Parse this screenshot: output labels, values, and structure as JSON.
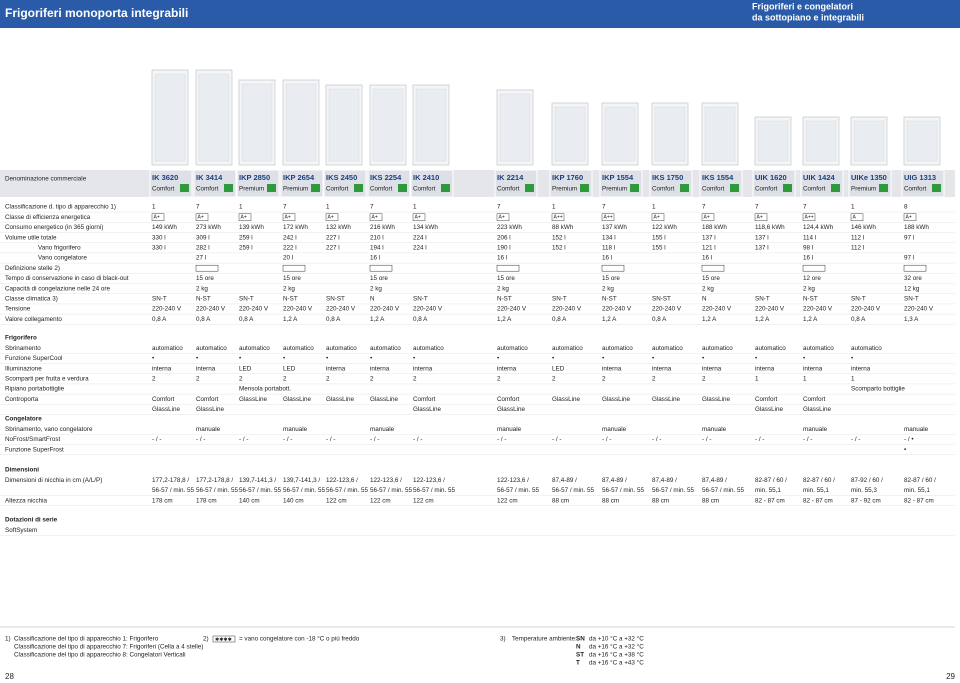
{
  "header": {
    "title": "Frigoriferi monoporta integrabili",
    "right_title": [
      "Frigoriferi e congelatori",
      "da sottopiano e integrabili"
    ]
  },
  "table": {
    "header_label": "Denominazione commerciale",
    "models": [
      {
        "name": "IK 3620",
        "line": "Comfort"
      },
      {
        "name": "IK 3414",
        "line": "Comfort"
      },
      {
        "name": "IKP 2850",
        "line": "Premium"
      },
      {
        "name": "IKP 2654",
        "line": "Premium"
      },
      {
        "name": "IKS 2450",
        "line": "Comfort"
      },
      {
        "name": "IKS 2254",
        "line": "Comfort"
      },
      {
        "name": "IK 2410",
        "line": "Comfort"
      },
      {
        "name": "IK 2214",
        "line": "Comfort"
      },
      {
        "name": "IKP 1760",
        "line": "Premium"
      },
      {
        "name": "IKP 1554",
        "line": "Premium"
      },
      {
        "name": "IKS 1750",
        "line": "Comfort"
      },
      {
        "name": "IKS 1554",
        "line": "Comfort"
      },
      {
        "name": "UIK 1620",
        "line": "Comfort"
      },
      {
        "name": "UIK 1424",
        "line": "Comfort"
      },
      {
        "name": "UIKe 1350",
        "line": "Premium"
      },
      {
        "name": "UIG 1313",
        "line": "Comfort"
      }
    ],
    "sections": [
      {
        "rows": [
          {
            "label": "Classificazione d. tipo di apparecchio  1)",
            "cells": [
              "1",
              "7",
              "1",
              "7",
              "1",
              "7",
              "1",
              "7",
              "1",
              "7",
              "1",
              "7",
              "7",
              "7",
              "1",
              "8"
            ]
          },
          {
            "label": "Classe di efficienza energetica",
            "cells": [
              "A+",
              "A+",
              "A+",
              "A+",
              "A+",
              "A+",
              "A+",
              "A+",
              "A++",
              "A++",
              "A+",
              "A+",
              "A+",
              "A++",
              "A",
              "A+"
            ]
          },
          {
            "label": "Consumo energetico (in 365 giorni)",
            "cells": [
              "149 kWh",
              "273 kWh",
              "139 kWh",
              "172 kWh",
              "132 kWh",
              "216 kWh",
              "134 kWh",
              "223 kWh",
              "88 kWh",
              "137 kWh",
              "122 kWh",
              "188 kWh",
              "118,6 kWh",
              "124,4 kWh",
              "146 kWh",
              "188 kWh"
            ]
          },
          {
            "label": "Volume utile  totale",
            "cells": [
              "330 l",
              "309 l",
              "259 l",
              "242 l",
              "227 l",
              "210 l",
              "224 l",
              "206 l",
              "152 l",
              "134 l",
              "155 l",
              "137 l",
              "137 l",
              "114 l",
              "112 l",
              "97 l"
            ]
          },
          {
            "label": "Vano frigorifero",
            "cells": [
              "330 l",
              "282 l",
              "259 l",
              "222 l",
              "227 l",
              "194 l",
              "224 l",
              "190 l",
              "152 l",
              "118 l",
              "155 l",
              "121 l",
              "137 l",
              "98 l",
              "112 l",
              null
            ]
          },
          {
            "label": "Vano congelatore",
            "cells": [
              null,
              "27 l",
              null,
              "20 l",
              null,
              "16 l",
              null,
              "16 l",
              null,
              "16 l",
              null,
              "16 l",
              null,
              "16 l",
              null,
              "97 l"
            ]
          },
          {
            "label": "Definizione stelle  2)"
          },
          {
            "label": "Tempo di conservazione in caso di black-out",
            "cells": [
              null,
              "15 ore",
              null,
              "15 ore",
              null,
              "15 ore",
              null,
              "15 ore",
              null,
              "15 ore",
              null,
              "15 ore",
              null,
              "12 ore",
              null,
              "32 ore"
            ]
          },
          {
            "label": "Capacità di congelazione nelle 24 ore",
            "cells": [
              null,
              "2 kg",
              null,
              "2 kg",
              null,
              "2 kg",
              null,
              "2 kg",
              null,
              "2 kg",
              null,
              "2 kg",
              null,
              "2 kg",
              null,
              "12 kg"
            ]
          },
          {
            "label": "Classe climatica  3)",
            "cells": [
              "SN-T",
              "N-ST",
              "SN-T",
              "N-ST",
              "SN-ST",
              "N",
              "SN-T",
              "N-ST",
              "SN-T",
              "N-ST",
              "SN-ST",
              "N",
              "SN-T",
              "N-ST",
              "SN-T",
              "SN-T"
            ]
          },
          {
            "label": "Tensione",
            "cells": [
              "220-240 V",
              "220-240 V",
              "220-240 V",
              "220-240 V",
              "220-240 V",
              "220-240 V",
              "220-240 V",
              "220-240 V",
              "220-240 V",
              "220-240 V",
              "220-240 V",
              "220-240 V",
              "220-240 V",
              "220-240 V",
              "220-240 V",
              "220-240 V"
            ]
          },
          {
            "label": "Valore collegamento",
            "cells": [
              "0,8 A",
              "0,8 A",
              "0,8 A",
              "1,2 A",
              "0,8 A",
              "1,2 A",
              "0,8 A",
              "1,2 A",
              "0,8 A",
              "1,2 A",
              "0,8 A",
              "1,2 A",
              "1,2 A",
              "1,2 A",
              "0,8 A",
              "1,3 A"
            ]
          }
        ]
      },
      {
        "title": "Frigorifero",
        "rows": [
          {
            "label": "Sbrinamento",
            "cells": [
              "automatico",
              "automatico",
              "automatico",
              "automatico",
              "automatico",
              "automatico",
              "automatico",
              "automatico",
              "automatico",
              "automatico",
              "automatico",
              "automatico",
              "automatico",
              "automatico",
              "automatico",
              null
            ]
          },
          {
            "label": "Funzione SuperCool",
            "cells": [
              "•",
              "•",
              "•",
              "•",
              "•",
              "•",
              "•",
              "•",
              "•",
              "•",
              "•",
              "•",
              "•",
              "•",
              "•",
              null
            ]
          },
          {
            "label": "Illuminazione",
            "cells": [
              "interna",
              "interna",
              "LED",
              "LED",
              "interna",
              "interna",
              "interna",
              "interna",
              "LED",
              "interna",
              "interna",
              "interna",
              "interna",
              "interna",
              "interna",
              null
            ]
          },
          {
            "label": "Scomparti per frutta e verdura",
            "cells": [
              "2",
              "2",
              "2",
              "2",
              "2",
              "2",
              "2",
              "2",
              "2",
              "2",
              "2",
              "2",
              "1",
              "1",
              "1",
              null
            ]
          },
          {
            "label": "Ripiano portabottiglie",
            "cells": [
              null,
              null,
              "Mensola portabott.",
              null,
              null,
              null,
              null,
              null,
              null,
              null,
              null,
              null,
              null,
              null,
              "Scomparto bottiglie",
              null
            ]
          },
          {
            "label": "Controporta",
            "cells": [
              "Comfort",
              "Comfort",
              "GlassLine",
              "GlassLine",
              "GlassLine",
              "GlassLine",
              "Comfort",
              "Comfort",
              "GlassLine",
              "GlassLine",
              "GlassLine",
              "GlassLine",
              "Comfort",
              "Comfort",
              null,
              null
            ]
          },
          {
            "cells": [
              "GlassLine",
              "GlassLine",
              null,
              null,
              null,
              null,
              "GlassLine",
              "GlassLine",
              null,
              null,
              null,
              null,
              "GlassLine",
              "GlassLine",
              null,
              null
            ]
          }
        ]
      },
      {
        "title": "Congelatore",
        "rows": [
          {
            "label": "Sbrinamento, vano congelatore",
            "cells": [
              null,
              "manuale",
              null,
              "manuale",
              null,
              "manuale",
              null,
              "manuale",
              null,
              "manuale",
              null,
              "manuale",
              null,
              "manuale",
              null,
              "manuale"
            ]
          },
          {
            "label": "NoFrost/SmartFrost",
            "cells": [
              "- / -",
              "- / -",
              "- / -",
              "- / -",
              "- / -",
              "- / -",
              "- / -",
              "- / -",
              "- / -",
              "- / -",
              "- / -",
              "- / -",
              "- / -",
              "- / -",
              "- / -",
              "- / •"
            ]
          },
          {
            "label": "Funzione SuperFrost",
            "cells": [
              null,
              null,
              null,
              null,
              null,
              null,
              null,
              null,
              null,
              null,
              null,
              null,
              null,
              null,
              null,
              "•"
            ]
          }
        ]
      },
      {
        "title": "Dimensioni",
        "rows": [
          {
            "label": "Dimensioni di nicchia in cm (A/L/P)",
            "cells": [
              [
                "177,2-178,8 /",
                "56-57 / min. 55"
              ],
              [
                "177,2-178,8 /",
                "56-57 / min. 55"
              ],
              [
                "139,7-141,3 /",
                "56-57 / min. 55"
              ],
              [
                "139,7-141,3 /",
                "56-57 / min. 55"
              ],
              [
                "122-123,6 /",
                "56-57 / min. 55"
              ],
              [
                "122-123,6 /",
                "56-57 / min. 55"
              ],
              [
                "122-123,6 /",
                "56-57 / min. 55"
              ],
              [
                "122-123,6 /",
                "56-57 / min. 55"
              ],
              [
                "87,4-89 /",
                "56-57 / min. 55"
              ],
              [
                "87,4-89 /",
                "56-57 / min. 55"
              ],
              [
                "87,4-89 /",
                "56-57 / min. 55"
              ],
              [
                "87,4-89 /",
                "56-57 / min. 55"
              ],
              [
                "82-87 / 60 /",
                "min. 55,1"
              ],
              [
                "82-87 / 60 /",
                "min. 55,1"
              ],
              [
                "87-92 / 60 /",
                "min. 55,3"
              ],
              [
                "82-87 / 60 /",
                "min. 55,1"
              ]
            ]
          },
          {
            "label": "Altezza nicchia",
            "cells": [
              "178 cm",
              "178 cm",
              "140 cm",
              "140 cm",
              "122 cm",
              "122 cm",
              "122 cm",
              "122 cm",
              "88 cm",
              "88 cm",
              "88 cm",
              "88 cm",
              "82 - 87 cm",
              "82 - 87 cm",
              "87 - 92 cm",
              "82 - 87 cm"
            ]
          }
        ]
      },
      {
        "title": "Dotazioni di serie",
        "rows": [
          {
            "label": "SoftSystem"
          }
        ]
      }
    ]
  },
  "footnotes": {
    "note1": {
      "marker": "1)",
      "lines": [
        "Classificazione del tipo di apparecchio 1: Frigorifero",
        "Classificazione del tipo di apparecchio 7: Frigoriferi (Cella a 4 stelle)",
        "Classificazione del tipo di apparecchio 8: Congelatori Verticali"
      ]
    },
    "note2": {
      "marker": "2)",
      "text": "= vano congelatore con -18 °C o più freddo"
    },
    "note3": {
      "marker": "3)",
      "text": "Temperature ambiente:",
      "items": [
        {
          "code": "SN",
          "range": "da +10 °C a +32 °C"
        },
        {
          "code": "N",
          "range": "da +16 °C a +32 °C"
        },
        {
          "code": "ST",
          "range": "da +16 °C a +38 °C"
        },
        {
          "code": "T",
          "range": "da +16 °C a +43 °C"
        }
      ]
    }
  },
  "page_numbers": {
    "left": "28",
    "right": "29"
  }
}
